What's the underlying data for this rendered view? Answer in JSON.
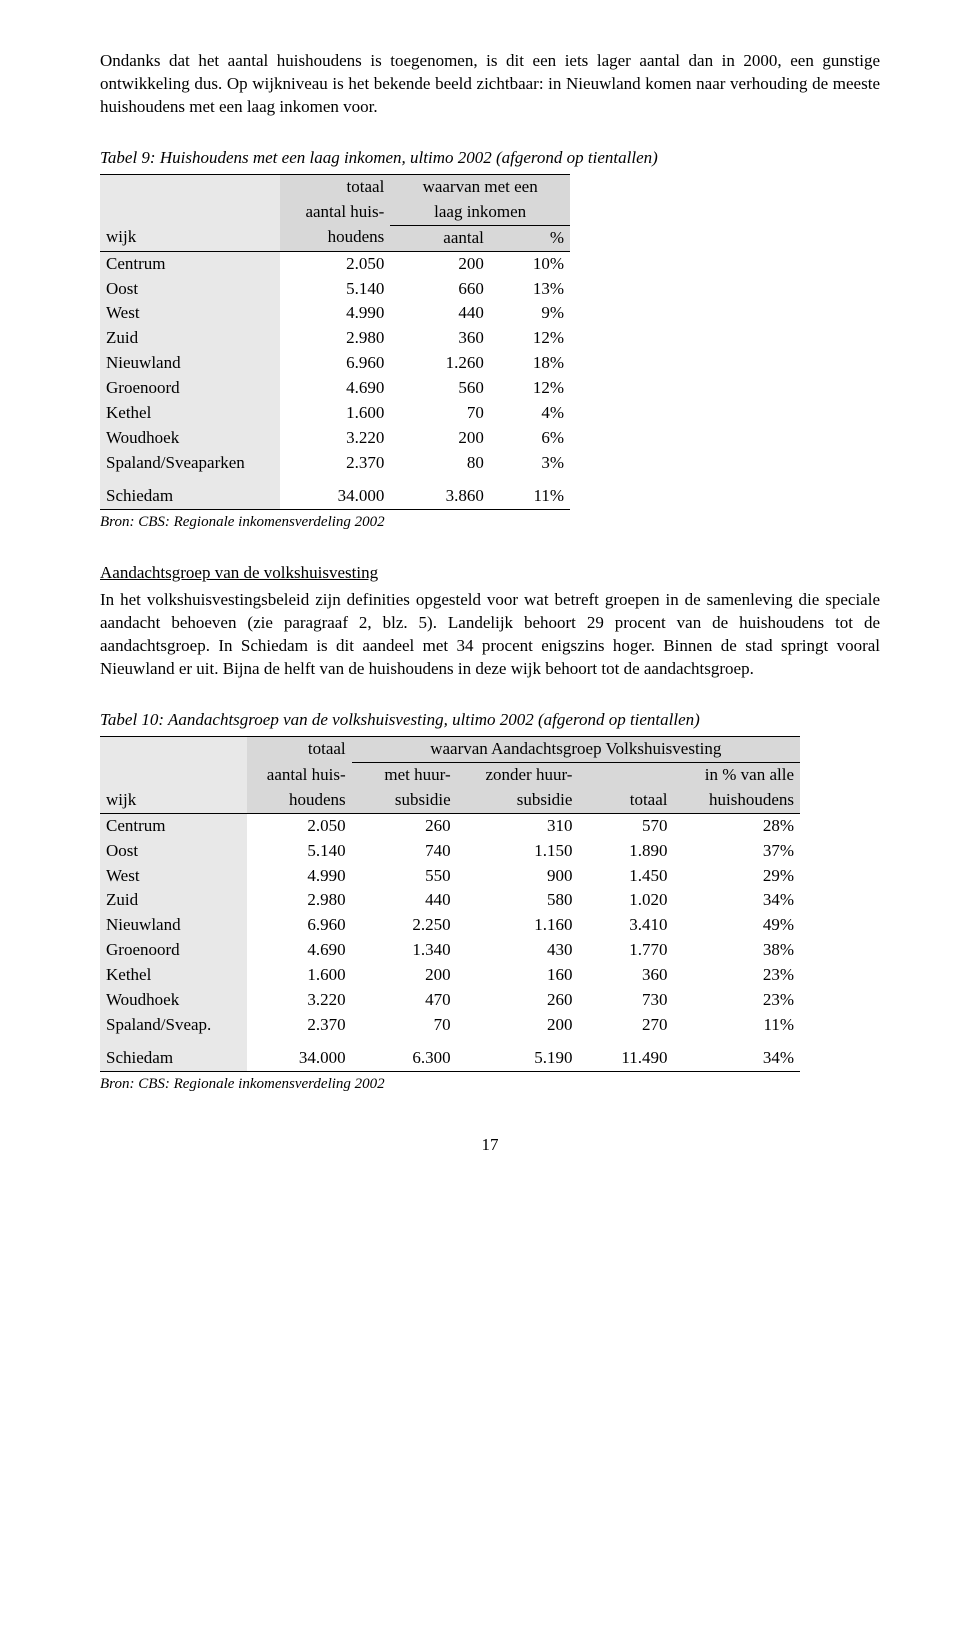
{
  "intro": {
    "p1": "Ondanks dat het aantal huishoudens is toegenomen, is dit een iets lager aantal dan in 2000, een gunstige ontwikkeling dus. Op wijkniveau is het bekende beeld zichtbaar: in Nieuwland komen naar verhouding de meeste huishoudens met een laag inkomen voor."
  },
  "table9": {
    "title": "Tabel 9: Huishoudens met een laag inkomen, ultimo 2002 (afgerond op tientallen)",
    "col_wijk": "wijk",
    "col_totaal1": "totaal",
    "col_totaal2": "aantal huis-",
    "col_totaal3": "houdens",
    "col_waarvan1": "waarvan met een",
    "col_waarvan2": "laag inkomen",
    "col_aantal": "aantal",
    "col_pct": "%",
    "rows": [
      {
        "wijk": "Centrum",
        "tot": "2.050",
        "aant": "200",
        "pct": "10%"
      },
      {
        "wijk": "Oost",
        "tot": "5.140",
        "aant": "660",
        "pct": "13%"
      },
      {
        "wijk": "West",
        "tot": "4.990",
        "aant": "440",
        "pct": "9%"
      },
      {
        "wijk": "Zuid",
        "tot": "2.980",
        "aant": "360",
        "pct": "12%"
      },
      {
        "wijk": "Nieuwland",
        "tot": "6.960",
        "aant": "1.260",
        "pct": "18%"
      },
      {
        "wijk": "Groenoord",
        "tot": "4.690",
        "aant": "560",
        "pct": "12%"
      },
      {
        "wijk": "Kethel",
        "tot": "1.600",
        "aant": "70",
        "pct": "4%"
      },
      {
        "wijk": "Woudhoek",
        "tot": "3.220",
        "aant": "200",
        "pct": "6%"
      },
      {
        "wijk": "Spaland/Sveaparken",
        "tot": "2.370",
        "aant": "80",
        "pct": "3%"
      }
    ],
    "total": {
      "wijk": "Schiedam",
      "tot": "34.000",
      "aant": "3.860",
      "pct": "11%"
    },
    "source": "Bron: CBS: Regionale inkomensverdeling 2002"
  },
  "section2": {
    "title": "Aandachtsgroep van de volkshuisvesting",
    "body": "In het volkshuisvestingsbeleid zijn definities opgesteld voor wat betreft groepen in de samenleving die speciale aandacht behoeven (zie paragraaf 2, blz. 5). Landelijk behoort 29 procent van de huishoudens tot de aandachtsgroep. In Schiedam is dit aandeel met 34 procent enigszins hoger. Binnen de stad springt vooral Nieuwland er uit. Bijna de helft van de huishoudens in deze wijk behoort tot de aandachtsgroep."
  },
  "table10": {
    "title": "Tabel 10:  Aandachtsgroep van de volkshuisvesting, ultimo 2002 (afgerond op tientallen)",
    "col_wijk": "wijk",
    "col_totaal1": "totaal",
    "col_totaal2": "aantal huis-",
    "col_totaal3": "houdens",
    "col_span": "waarvan Aandachtsgroep Volkshuisvesting",
    "col_met1": "met huur-",
    "col_met2": "subsidie",
    "col_zonder1": "zonder huur-",
    "col_zonder2": "subsidie",
    "col_tot": "totaal",
    "col_pct1": "in % van alle",
    "col_pct2": "huishoudens",
    "rows": [
      {
        "wijk": "Centrum",
        "tot": "2.050",
        "met": "260",
        "zon": "310",
        "t": "570",
        "pct": "28%"
      },
      {
        "wijk": "Oost",
        "tot": "5.140",
        "met": "740",
        "zon": "1.150",
        "t": "1.890",
        "pct": "37%"
      },
      {
        "wijk": "West",
        "tot": "4.990",
        "met": "550",
        "zon": "900",
        "t": "1.450",
        "pct": "29%"
      },
      {
        "wijk": "Zuid",
        "tot": "2.980",
        "met": "440",
        "zon": "580",
        "t": "1.020",
        "pct": "34%"
      },
      {
        "wijk": "Nieuwland",
        "tot": "6.960",
        "met": "2.250",
        "zon": "1.160",
        "t": "3.410",
        "pct": "49%"
      },
      {
        "wijk": "Groenoord",
        "tot": "4.690",
        "met": "1.340",
        "zon": "430",
        "t": "1.770",
        "pct": "38%"
      },
      {
        "wijk": "Kethel",
        "tot": "1.600",
        "met": "200",
        "zon": "160",
        "t": "360",
        "pct": "23%"
      },
      {
        "wijk": "Woudhoek",
        "tot": "3.220",
        "met": "470",
        "zon": "260",
        "t": "730",
        "pct": "23%"
      },
      {
        "wijk": "Spaland/Sveap.",
        "tot": "2.370",
        "met": "70",
        "zon": "200",
        "t": "270",
        "pct": "11%"
      }
    ],
    "total": {
      "wijk": "Schiedam",
      "tot": "34.000",
      "met": "6.300",
      "zon": "5.190",
      "t": "11.490",
      "pct": "34%"
    },
    "source": "Bron: CBS: Regionale inkomensverdeling 2002"
  },
  "pagenum": "17"
}
